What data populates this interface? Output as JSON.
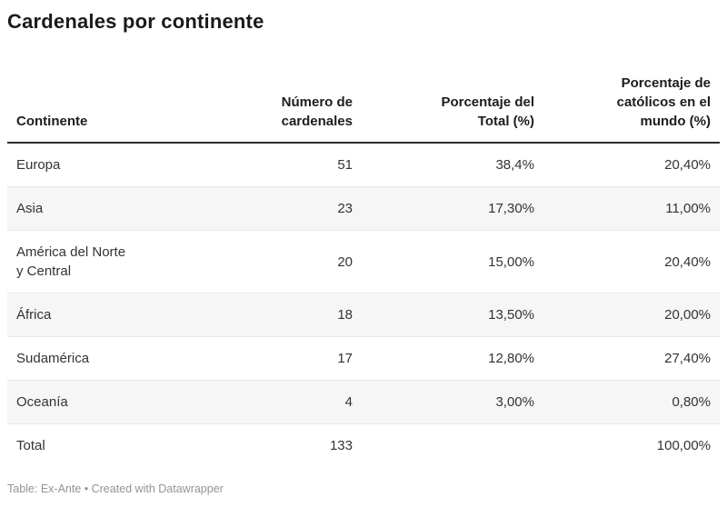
{
  "title": "Cardenales por continente",
  "chart_data": {
    "type": "table",
    "title": "Cardenales por continente",
    "columns": [
      "Continente",
      "Número de\ncardenales",
      "Porcentaje del\nTotal (%)",
      "Porcentaje de\ncatólicos en el\nmundo (%)"
    ],
    "rows": [
      [
        "Europa",
        "51",
        "38,4%",
        "20,40%"
      ],
      [
        "Asia",
        "23",
        "17,30%",
        "11,00%"
      ],
      [
        "América del Norte\ny Central",
        "20",
        "15,00%",
        "20,40%"
      ],
      [
        "África",
        "18",
        "13,50%",
        "20,00%"
      ],
      [
        "Sudamérica",
        "17",
        "12,80%",
        "27,40%"
      ],
      [
        "Oceanía",
        "4",
        "3,00%",
        "0,80%"
      ],
      [
        "Total",
        "133",
        "",
        "100,00%"
      ]
    ],
    "layout_hints": {
      "zebra_striping": true,
      "zebra_rows": [
        "Asia",
        "África",
        "Oceanía"
      ],
      "number_alignment": "right",
      "header_border_color": "#2b2b2b",
      "zebra_color": "#f6f6f6"
    }
  },
  "footer": {
    "credit": "Table: Ex-Ante • Created with Datawrapper"
  },
  "colors": {
    "title_text": "#1a1a1a",
    "body_text": "#333333",
    "footer_text": "#949494",
    "row_stripe": "#f6f6f6",
    "row_divider": "#e8e8e8",
    "header_rule": "#2b2b2b",
    "background": "#ffffff"
  }
}
